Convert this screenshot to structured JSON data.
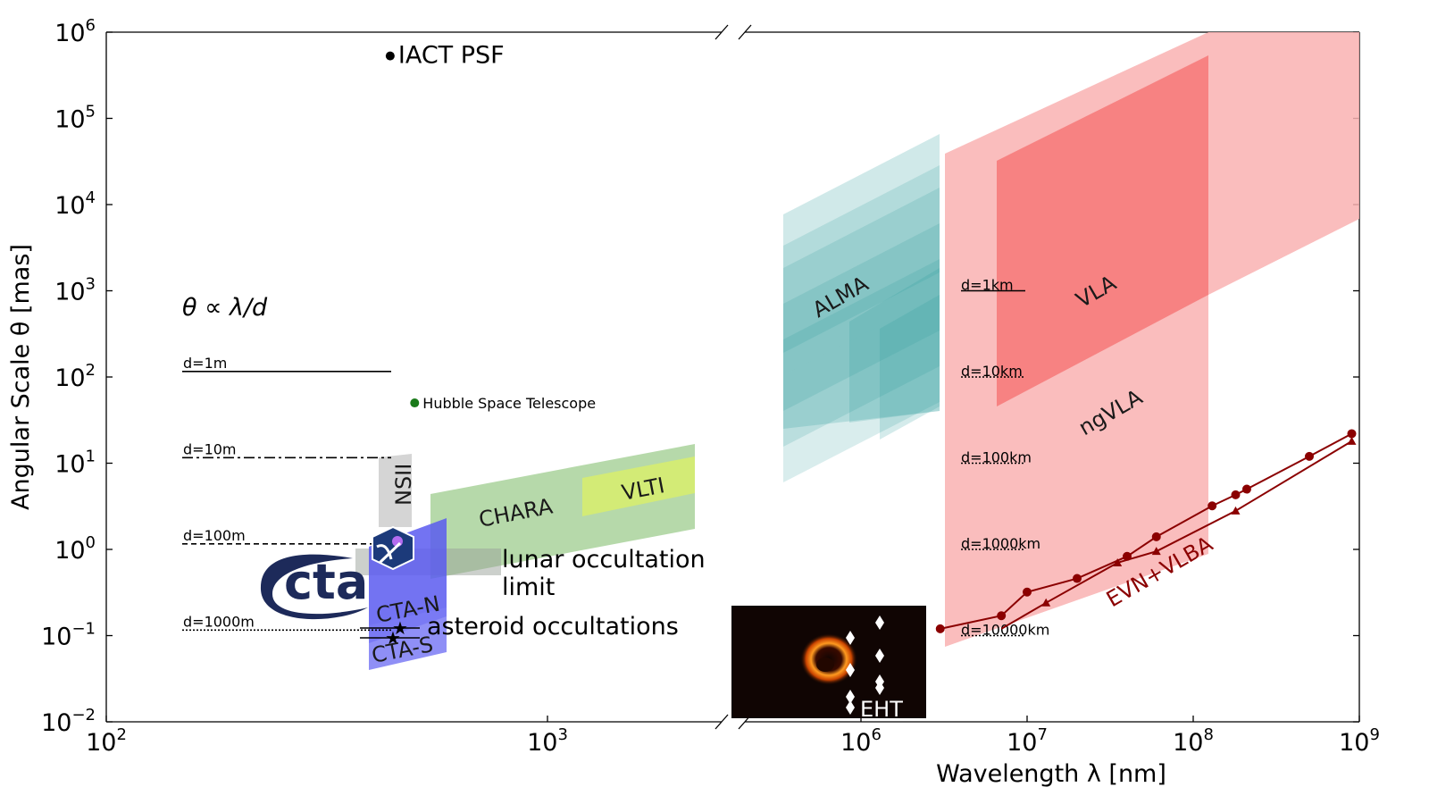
{
  "chart_data": {
    "type": "scatter",
    "title": "",
    "xlabel": "Wavelength λ  [nm]",
    "ylabel": "Angular Scale θ [mas]",
    "xscale": "log (broken axis)",
    "yscale": "log",
    "ylim": [
      0.01,
      1000000
    ],
    "x_ticks_left": [
      {
        "value": 100,
        "base": "10",
        "exp": "2"
      },
      {
        "value": 1000,
        "base": "10",
        "exp": "3"
      }
    ],
    "x_ticks_right": [
      {
        "value": 1000000,
        "base": "10",
        "exp": "6"
      },
      {
        "value": 10000000,
        "base": "10",
        "exp": "7"
      },
      {
        "value": 100000000,
        "base": "10",
        "exp": "8"
      },
      {
        "value": 1000000000,
        "base": "10",
        "exp": "9"
      }
    ],
    "y_ticks": [
      {
        "value": 1000000,
        "base": "10",
        "exp": "6"
      },
      {
        "value": 100000,
        "base": "10",
        "exp": "5"
      },
      {
        "value": 10000,
        "base": "10",
        "exp": "4"
      },
      {
        "value": 1000,
        "base": "10",
        "exp": "3"
      },
      {
        "value": 100,
        "base": "10",
        "exp": "2"
      },
      {
        "value": 10,
        "base": "10",
        "exp": "1"
      },
      {
        "value": 1,
        "base": "10",
        "exp": "0"
      },
      {
        "value": 0.1,
        "base": "10",
        "exp": "−1"
      },
      {
        "value": 0.01,
        "base": "10",
        "exp": "−2"
      }
    ],
    "formula": "θ ∝ λ/d",
    "baselines_left": [
      {
        "label": "d=1m",
        "theta": 116,
        "style": "solid"
      },
      {
        "label": "d=10m",
        "theta": 11.6,
        "style": "dashdot"
      },
      {
        "label": "d=100m",
        "theta": 1.16,
        "style": "dashed"
      },
      {
        "label": "d=1000m",
        "theta": 0.116,
        "style": "dotted"
      }
    ],
    "baselines_right": [
      {
        "label": "d=1km",
        "theta": 1000
      },
      {
        "label": "d=10km",
        "theta": 100
      },
      {
        "label": "d=100km",
        "theta": 10
      },
      {
        "label": "d=1000km",
        "theta": 1
      },
      {
        "label": "d=10000km",
        "theta": 0.1
      }
    ],
    "points": [
      {
        "label": "IACT PSF",
        "x": 440,
        "y": 530000,
        "color": "#000000"
      },
      {
        "label": "Hubble Space Telescope",
        "x": 500,
        "y": 50,
        "color": "#1a7a1a"
      }
    ],
    "regions": [
      {
        "label": "NSII",
        "color": "#d0d0d0"
      },
      {
        "label": "CHARA",
        "color": "#a9d29b"
      },
      {
        "label": "VLTI",
        "color": "#d6ec70"
      },
      {
        "label": "CTA-N",
        "color": "#5a5af0"
      },
      {
        "label": "CTA-S",
        "color": "#7b7bf5"
      },
      {
        "label": "ALMA",
        "color": "#2a9d9d"
      },
      {
        "label": "VLA",
        "color": "#f56a6a"
      },
      {
        "label": "ngVLA",
        "color": "#f9b1b1"
      },
      {
        "label": "EVN+VLBA",
        "color": "#8b0000"
      },
      {
        "label": "EHT",
        "color": "#ffffff"
      }
    ],
    "text_annotations": {
      "lunar": [
        "lunar occultation",
        "limit"
      ],
      "asteroid": "asteroid occultations"
    },
    "logos": {
      "cta": "cta"
    },
    "evn_circles": [
      {
        "x": 3000000,
        "y": 0.12
      },
      {
        "x": 7000000,
        "y": 0.17
      },
      {
        "x": 10000000,
        "y": 0.32
      },
      {
        "x": 20000000,
        "y": 0.46
      },
      {
        "x": 40000000,
        "y": 0.83
      },
      {
        "x": 60000000,
        "y": 1.4
      },
      {
        "x": 130000000,
        "y": 3.2
      },
      {
        "x": 180000000,
        "y": 4.3
      },
      {
        "x": 210000000,
        "y": 5.0
      },
      {
        "x": 500000000,
        "y": 12
      },
      {
        "x": 900000000,
        "y": 22
      }
    ],
    "evn_triangles": [
      {
        "x": 13000000,
        "y": 0.24
      },
      {
        "x": 35000000,
        "y": 0.7
      },
      {
        "x": 60000000,
        "y": 0.95
      },
      {
        "x": 180000000,
        "y": 2.8
      },
      {
        "x": 900000000,
        "y": 18
      }
    ]
  }
}
